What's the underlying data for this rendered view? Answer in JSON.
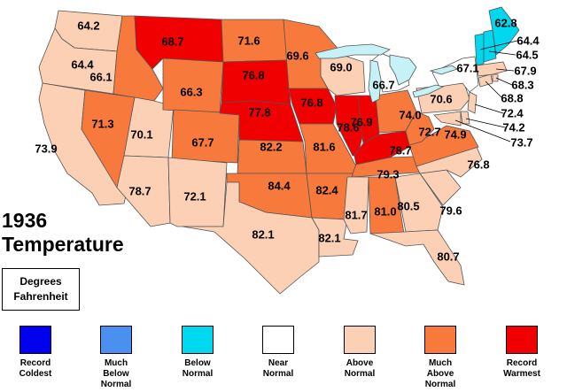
{
  "map": {
    "title_line1": "1936",
    "title_line2": "Temperature",
    "units_line1": "Degrees",
    "units_line2": "Fahrenheit",
    "category_colors": {
      "record_coldest": "#0000ee",
      "much_below": "#4a90f0",
      "below": "#00d8f0",
      "near": "#ffffff",
      "above": "#fcd0b4",
      "much_above": "#f7793c",
      "record_warmest": "#f00000"
    },
    "legend": [
      {
        "key": "record_coldest",
        "line1": "Record",
        "line2": "Coldest",
        "line3": ""
      },
      {
        "key": "much_below",
        "line1": "Much",
        "line2": "Below",
        "line3": "Normal"
      },
      {
        "key": "below",
        "line1": "Below",
        "line2": "Normal",
        "line3": ""
      },
      {
        "key": "near",
        "line1": "Near",
        "line2": "Normal",
        "line3": ""
      },
      {
        "key": "above",
        "line1": "Above",
        "line2": "Normal",
        "line3": ""
      },
      {
        "key": "much_above",
        "line1": "Much",
        "line2": "Above",
        "line3": "Normal"
      },
      {
        "key": "record_warmest",
        "line1": "Record",
        "line2": "Warmest",
        "line3": ""
      }
    ],
    "states": [
      {
        "state": "WA",
        "value": "64.2",
        "category": "above"
      },
      {
        "state": "OR",
        "value": "64.4",
        "category": "above"
      },
      {
        "state": "CA",
        "value": "73.9",
        "category": "above"
      },
      {
        "state": "ID",
        "value": "66.1",
        "category": "much_above"
      },
      {
        "state": "NV",
        "value": "71.3",
        "category": "much_above"
      },
      {
        "state": "UT",
        "value": "70.1",
        "category": "above"
      },
      {
        "state": "AZ",
        "value": "78.7",
        "category": "above"
      },
      {
        "state": "MT",
        "value": "68.7",
        "category": "record_warmest"
      },
      {
        "state": "WY",
        "value": "66.3",
        "category": "much_above"
      },
      {
        "state": "CO",
        "value": "67.7",
        "category": "much_above"
      },
      {
        "state": "NM",
        "value": "72.1",
        "category": "above"
      },
      {
        "state": "ND",
        "value": "71.6",
        "category": "much_above"
      },
      {
        "state": "SD",
        "value": "76.8",
        "category": "record_warmest"
      },
      {
        "state": "NE",
        "value": "77.8",
        "category": "record_warmest"
      },
      {
        "state": "KS",
        "value": "82.2",
        "category": "much_above"
      },
      {
        "state": "OK",
        "value": "84.4",
        "category": "much_above"
      },
      {
        "state": "TX",
        "value": "82.1",
        "category": "above"
      },
      {
        "state": "MN",
        "value": "69.6",
        "category": "much_above"
      },
      {
        "state": "IA",
        "value": "76.8",
        "category": "record_warmest"
      },
      {
        "state": "MO",
        "value": "81.6",
        "category": "much_above"
      },
      {
        "state": "AR",
        "value": "82.4",
        "category": "much_above"
      },
      {
        "state": "LA",
        "value": "82.1",
        "category": "above"
      },
      {
        "state": "WI",
        "value": "69.0",
        "category": "above"
      },
      {
        "state": "IL",
        "value": "78.6",
        "category": "record_warmest"
      },
      {
        "state": "MI",
        "value": "66.7",
        "category": "near"
      },
      {
        "state": "IN",
        "value": "76.9",
        "category": "record_warmest"
      },
      {
        "state": "OH",
        "value": "74.0",
        "category": "much_above"
      },
      {
        "state": "KY",
        "value": "78.7",
        "category": "record_warmest"
      },
      {
        "state": "TN",
        "value": "79.3",
        "category": "much_above"
      },
      {
        "state": "MS",
        "value": "81.7",
        "category": "above"
      },
      {
        "state": "AL",
        "value": "81.0",
        "category": "much_above"
      },
      {
        "state": "GA",
        "value": "80.5",
        "category": "above"
      },
      {
        "state": "FL",
        "value": "80.7",
        "category": "above"
      },
      {
        "state": "SC",
        "value": "79.6",
        "category": "above"
      },
      {
        "state": "NC",
        "value": "76.8",
        "category": "above"
      },
      {
        "state": "VA",
        "value": "74.9",
        "category": "much_above"
      },
      {
        "state": "WV",
        "value": "72.7",
        "category": "much_above"
      },
      {
        "state": "PA",
        "value": "70.6",
        "category": "above"
      },
      {
        "state": "NY",
        "value": "67.1",
        "category": "near"
      },
      {
        "state": "NJ",
        "value": "72.4",
        "category": "above"
      },
      {
        "state": "DE",
        "value": "74.2",
        "category": "above"
      },
      {
        "state": "MD",
        "value": "73.7",
        "category": "above"
      },
      {
        "state": "CT",
        "value": "68.8",
        "category": "above"
      },
      {
        "state": "RI",
        "value": "68.3",
        "category": "above"
      },
      {
        "state": "MA",
        "value": "67.9",
        "category": "above"
      },
      {
        "state": "VT",
        "value": "64.4",
        "category": "below"
      },
      {
        "state": "NH",
        "value": "64.5",
        "category": "below"
      },
      {
        "state": "ME",
        "value": "62.8",
        "category": "below"
      }
    ]
  }
}
